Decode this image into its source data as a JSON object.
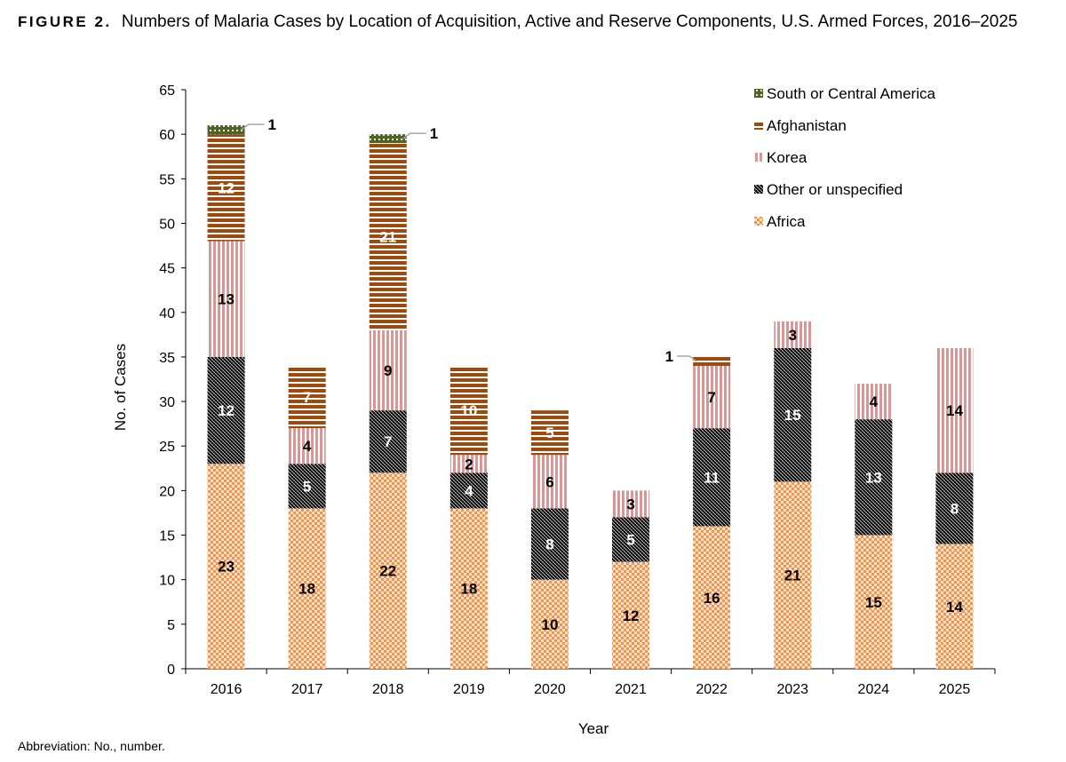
{
  "figure": {
    "label": "FIGURE 2.",
    "title": "Numbers of Malaria Cases by Location of Acquisition, Active and Reserve Components, U.S. Armed Forces, 2016–2025",
    "footnote": "Abbreviation: No., number."
  },
  "chart_data": {
    "type": "bar",
    "stacked": true,
    "categories": [
      "2016",
      "2017",
      "2018",
      "2019",
      "2020",
      "2021",
      "2022",
      "2023",
      "2024",
      "2025"
    ],
    "series": [
      {
        "name": "Africa",
        "color": "#f4a46b",
        "pattern": "checker",
        "values": [
          23,
          18,
          22,
          18,
          10,
          12,
          16,
          21,
          15,
          14
        ]
      },
      {
        "name": "Other or unspecified",
        "color": "#111111",
        "pattern": "dense-checker",
        "values": [
          12,
          5,
          7,
          4,
          8,
          5,
          11,
          15,
          13,
          8
        ]
      },
      {
        "name": "Korea",
        "color": "#d99694",
        "pattern": "vertical-lines",
        "values": [
          13,
          4,
          9,
          2,
          6,
          3,
          7,
          3,
          4,
          14
        ]
      },
      {
        "name": "Afghanistan",
        "color": "#9c4a0d",
        "pattern": "horizontal-lines",
        "values": [
          12,
          7,
          21,
          10,
          5,
          0,
          1,
          0,
          0,
          0
        ]
      },
      {
        "name": "South or Central America",
        "color": "#4f6228",
        "pattern": "dots",
        "values": [
          1,
          0,
          1,
          0,
          0,
          0,
          0,
          0,
          0,
          0
        ]
      }
    ],
    "xlabel": "Year",
    "ylabel": "No. of Cases",
    "ylim": [
      0,
      65
    ],
    "yticks": [
      0,
      5,
      10,
      15,
      20,
      25,
      30,
      35,
      40,
      45,
      50,
      55,
      60,
      65
    ],
    "legend": {
      "placement": "top-right",
      "order": [
        "South or Central America",
        "Afghanistan",
        "Korea",
        "Other or unspecified",
        "Africa"
      ]
    },
    "grid": false,
    "value_labels": {
      "Africa": [
        "23",
        "18",
        "22",
        "18",
        "10",
        "12",
        "16",
        "21",
        "15",
        "14"
      ],
      "Other or unspecified": [
        "12",
        "5",
        "7",
        "4",
        "8",
        "5",
        "11",
        "15",
        "13",
        "8"
      ],
      "Korea": [
        "13",
        "4",
        "9",
        "2",
        "6",
        "3",
        "7",
        "3",
        "4",
        "14"
      ],
      "Afghanistan": [
        "12",
        "7",
        "21",
        "10",
        "5",
        "",
        "1",
        "",
        "",
        ""
      ],
      "South or Central America": [
        "1",
        "",
        "1",
        "",
        "",
        "",
        "",
        "",
        "",
        ""
      ]
    }
  }
}
